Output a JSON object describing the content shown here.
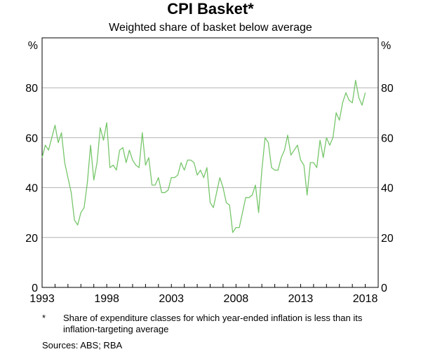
{
  "chart_data": {
    "type": "line",
    "title": "CPI Basket*",
    "subtitle": "Weighted share of basket below average",
    "left_unit": "%",
    "right_unit": "%",
    "ylim": [
      0,
      100
    ],
    "xlim": [
      1993,
      2019
    ],
    "y_ticks": [
      0,
      20,
      40,
      60,
      80
    ],
    "x_ticks": [
      1993,
      1998,
      2003,
      2008,
      2013,
      2018
    ],
    "grid": true,
    "line_color": "#77c66b",
    "series": [
      {
        "name": "Weighted share of basket below average",
        "x": [
          1993.0,
          1993.25,
          1993.5,
          1993.75,
          1994.0,
          1994.25,
          1994.5,
          1994.75,
          1995.0,
          1995.25,
          1995.5,
          1995.75,
          1996.0,
          1996.25,
          1996.5,
          1996.75,
          1997.0,
          1997.25,
          1997.5,
          1997.75,
          1998.0,
          1998.25,
          1998.5,
          1998.75,
          1999.0,
          1999.25,
          1999.5,
          1999.75,
          2000.0,
          2000.25,
          2000.5,
          2000.75,
          2001.0,
          2001.25,
          2001.5,
          2001.75,
          2002.0,
          2002.25,
          2002.5,
          2002.75,
          2003.0,
          2003.25,
          2003.5,
          2003.75,
          2004.0,
          2004.25,
          2004.5,
          2004.75,
          2005.0,
          2005.25,
          2005.5,
          2005.75,
          2006.0,
          2006.25,
          2006.5,
          2006.75,
          2007.0,
          2007.25,
          2007.5,
          2007.75,
          2008.0,
          2008.25,
          2008.5,
          2008.75,
          2009.0,
          2009.25,
          2009.5,
          2009.75,
          2010.0,
          2010.25,
          2010.5,
          2010.75,
          2011.0,
          2011.25,
          2011.5,
          2011.75,
          2012.0,
          2012.25,
          2012.5,
          2012.75,
          2013.0,
          2013.25,
          2013.5,
          2013.75,
          2014.0,
          2014.25,
          2014.5,
          2014.75,
          2015.0,
          2015.25,
          2015.5,
          2015.75,
          2016.0,
          2016.25,
          2016.5,
          2016.75,
          2017.0,
          2017.25,
          2017.5,
          2017.75,
          2018.0
        ],
        "values": [
          52,
          57,
          55,
          60,
          65,
          58,
          62,
          50,
          44,
          38,
          27,
          25,
          30,
          32,
          42,
          57,
          43,
          50,
          64,
          59,
          66,
          48,
          49,
          47,
          55,
          56,
          50,
          55,
          51,
          49,
          48,
          62,
          49,
          52,
          41,
          41,
          44,
          38,
          38,
          39,
          44,
          44,
          45,
          50,
          47,
          51,
          51,
          50,
          45,
          47,
          44,
          48,
          34,
          32,
          38,
          44,
          40,
          34,
          33,
          22,
          24,
          24,
          30,
          36,
          36,
          37,
          41,
          30,
          47,
          60,
          58,
          48,
          47,
          47,
          52,
          55,
          61,
          53,
          55,
          57,
          51,
          49,
          37,
          50,
          50,
          48,
          59,
          52,
          60,
          57,
          60,
          70,
          67,
          74,
          78,
          75,
          74,
          83,
          76,
          73,
          78
        ]
      }
    ]
  },
  "footnote_marker": "*",
  "footnote_text": "Share of expenditure classes for which year-ended inflation is less than its inflation-targeting average",
  "sources_text": "Sources:   ABS; RBA"
}
